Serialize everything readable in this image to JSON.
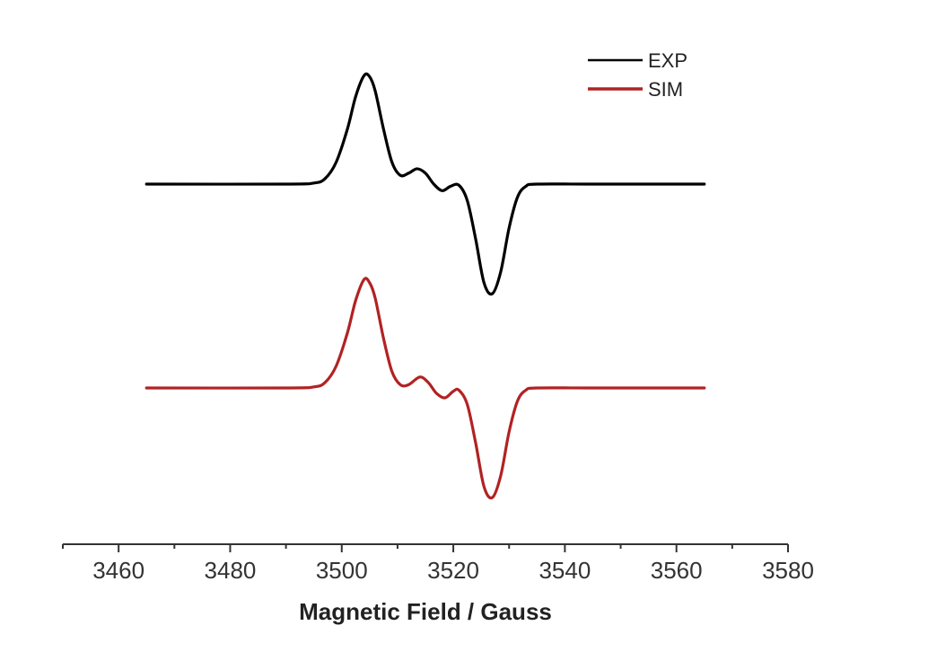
{
  "chart_data": {
    "type": "line",
    "title": "",
    "xlabel": "Magnetic Field / Gauss",
    "ylabel": "",
    "xlim": [
      3450,
      3580
    ],
    "x_ticks": [
      3460,
      3480,
      3500,
      3520,
      3540,
      3560,
      3580
    ],
    "x_tick_labels": [
      "3460",
      "3480",
      "3500",
      "3520",
      "3540",
      "3560",
      "3580"
    ],
    "grid": false,
    "legend_position": "top-right",
    "series": [
      {
        "name": "EXP",
        "color": "#000000",
        "offset": 1.0,
        "points": [
          [
            3465,
            0.0
          ],
          [
            3490,
            0.0
          ],
          [
            3495,
            0.01
          ],
          [
            3497,
            0.05
          ],
          [
            3499,
            0.2
          ],
          [
            3501,
            0.5
          ],
          [
            3502.5,
            0.8
          ],
          [
            3504,
            0.99
          ],
          [
            3505,
            0.98
          ],
          [
            3506,
            0.85
          ],
          [
            3507.5,
            0.5
          ],
          [
            3509,
            0.2
          ],
          [
            3510.5,
            0.08
          ],
          [
            3512,
            0.1
          ],
          [
            3513.5,
            0.14
          ],
          [
            3515,
            0.1
          ],
          [
            3516.5,
            0.0
          ],
          [
            3518,
            -0.06
          ],
          [
            3519.5,
            -0.02
          ],
          [
            3521,
            -0.01
          ],
          [
            3522.5,
            -0.15
          ],
          [
            3524,
            -0.5
          ],
          [
            3525.5,
            -0.9
          ],
          [
            3527,
            -1.0
          ],
          [
            3528.5,
            -0.8
          ],
          [
            3530,
            -0.4
          ],
          [
            3531.5,
            -0.12
          ],
          [
            3533,
            -0.02
          ],
          [
            3535,
            0.0
          ],
          [
            3545,
            0.0
          ],
          [
            3565,
            0.0
          ]
        ]
      },
      {
        "name": "SIM",
        "color": "#b22222",
        "offset": 0.0,
        "points": [
          [
            3465,
            0.0
          ],
          [
            3490,
            0.0
          ],
          [
            3495,
            0.01
          ],
          [
            3497,
            0.05
          ],
          [
            3499,
            0.2
          ],
          [
            3501,
            0.5
          ],
          [
            3502.5,
            0.8
          ],
          [
            3504,
            0.99
          ],
          [
            3505,
            0.96
          ],
          [
            3506,
            0.82
          ],
          [
            3507.5,
            0.45
          ],
          [
            3509,
            0.15
          ],
          [
            3510.5,
            0.03
          ],
          [
            3512,
            0.03
          ],
          [
            3514,
            0.1
          ],
          [
            3515.5,
            0.05
          ],
          [
            3517,
            -0.05
          ],
          [
            3518.5,
            -0.09
          ],
          [
            3520,
            -0.03
          ],
          [
            3521,
            -0.02
          ],
          [
            3522.5,
            -0.15
          ],
          [
            3524,
            -0.5
          ],
          [
            3525.5,
            -0.9
          ],
          [
            3527,
            -1.0
          ],
          [
            3528.5,
            -0.8
          ],
          [
            3530,
            -0.4
          ],
          [
            3531.5,
            -0.12
          ],
          [
            3533,
            -0.02
          ],
          [
            3535,
            0.0
          ],
          [
            3545,
            0.0
          ],
          [
            3565,
            0.0
          ]
        ]
      }
    ]
  }
}
